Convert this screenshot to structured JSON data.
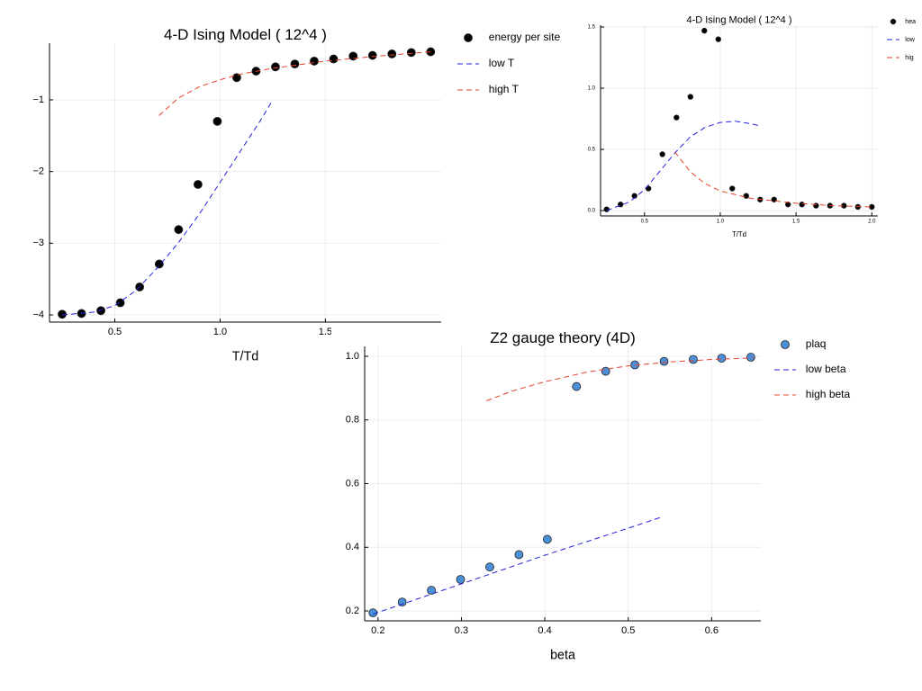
{
  "chart_data": [
    {
      "type": "scatter",
      "title": "4-D Ising Model ( 12^4 )",
      "xlabel": "T/Td",
      "grid": true,
      "legend": "outside right",
      "xlim": [
        0.19,
        2.05
      ],
      "ylim": [
        -4.1,
        -0.21
      ],
      "xticks": [
        0.5,
        {
          "value": 1,
          "label": "1.0"
        },
        1.5
      ],
      "yticks": [
        {
          "value": -1,
          "label": "−1"
        },
        {
          "value": -2,
          "label": "−2"
        },
        {
          "value": -3,
          "label": "−3"
        },
        {
          "value": -4,
          "label": "−4"
        }
      ],
      "series": [
        {
          "name": "energy per site",
          "color": "#000000",
          "marker": "circle",
          "x": [
            0.25,
            0.342,
            0.434,
            0.526,
            0.618,
            0.711,
            0.803,
            0.895,
            0.987,
            1.079,
            1.171,
            1.263,
            1.355,
            1.447,
            1.539,
            1.632,
            1.724,
            1.816,
            1.908,
            2.0
          ],
          "values": [
            -3.99,
            -3.98,
            -3.94,
            -3.83,
            -3.61,
            -3.29,
            -2.81,
            -2.18,
            -1.3,
            -0.69,
            -0.6,
            -0.54,
            -0.5,
            -0.46,
            -0.43,
            -0.39,
            -0.38,
            -0.36,
            -0.34,
            -0.33
          ]
        },
        {
          "name": "low T",
          "color": "#2222dd",
          "line": "dashed",
          "x": [
            0.25,
            0.4,
            0.5,
            0.6,
            0.7,
            0.8,
            0.9,
            1.0,
            1.1,
            1.2,
            1.25
          ],
          "values": [
            -4.0,
            -3.96,
            -3.87,
            -3.66,
            -3.35,
            -3.0,
            -2.6,
            -2.15,
            -1.7,
            -1.25,
            -1.0
          ]
        },
        {
          "name": "high T",
          "color": "#e8402a",
          "line": "dashed",
          "x": [
            0.71,
            0.8,
            0.9,
            1.0,
            1.1,
            1.25,
            1.5,
            1.75,
            2.0
          ],
          "values": [
            -1.22,
            -0.98,
            -0.82,
            -0.72,
            -0.64,
            -0.56,
            -0.46,
            -0.39,
            -0.33
          ]
        }
      ]
    },
    {
      "type": "scatter",
      "title": "4-D Ising Model ( 12^4 )",
      "xlabel": "T/Td",
      "grid": true,
      "legend": "outside right",
      "xlim": [
        0.21,
        2.04
      ],
      "ylim": [
        -0.044,
        1.515
      ],
      "xticks": [
        0.5,
        {
          "value": 1,
          "label": "1.0"
        },
        1.5,
        {
          "value": 2,
          "label": "2.0"
        }
      ],
      "yticks": [
        {
          "value": 0,
          "label": "0.0"
        },
        0.5,
        {
          "value": 1,
          "label": "1.0"
        },
        1.5
      ],
      "series": [
        {
          "name": "hea",
          "color": "#000000",
          "marker": "circle",
          "x": [
            0.25,
            0.342,
            0.434,
            0.526,
            0.618,
            0.711,
            0.803,
            0.895,
            0.987,
            1.079,
            1.171,
            1.263,
            1.355,
            1.447,
            1.539,
            1.632,
            1.724,
            1.816,
            1.908,
            2.0
          ],
          "values": [
            0.01,
            0.05,
            0.12,
            0.18,
            0.46,
            0.76,
            0.93,
            1.47,
            1.4,
            0.18,
            0.12,
            0.09,
            0.09,
            0.05,
            0.05,
            0.04,
            0.04,
            0.04,
            0.03,
            0.03
          ]
        },
        {
          "name": "low",
          "color": "#2222dd",
          "line": "dashed",
          "x": [
            0.25,
            0.4,
            0.5,
            0.6,
            0.7,
            0.8,
            0.9,
            1.0,
            1.1,
            1.2,
            1.27
          ],
          "values": [
            0.0,
            0.07,
            0.17,
            0.32,
            0.47,
            0.6,
            0.68,
            0.72,
            0.73,
            0.71,
            0.69
          ]
        },
        {
          "name": "hig",
          "color": "#e8402a",
          "line": "dashed",
          "x": [
            0.7,
            0.8,
            0.9,
            1.0,
            1.2,
            1.5,
            1.75,
            2.0
          ],
          "values": [
            0.48,
            0.32,
            0.22,
            0.16,
            0.1,
            0.06,
            0.04,
            0.03
          ]
        }
      ]
    },
    {
      "type": "scatter",
      "title": "Z2 gauge theory (4D)",
      "xlabel": "beta",
      "grid": true,
      "legend": "outside right",
      "xlim": [
        0.184,
        0.659
      ],
      "ylim": [
        0.169,
        1.031
      ],
      "xticks": [
        0.2,
        0.3,
        0.4,
        0.5,
        0.6
      ],
      "yticks": [
        0.2,
        0.4,
        0.6,
        0.8,
        {
          "value": 1,
          "label": "1.0"
        }
      ],
      "series": [
        {
          "name": "plaq",
          "color": "#4a8fd8",
          "marker": "circle",
          "x": [
            0.194,
            0.229,
            0.264,
            0.299,
            0.334,
            0.369,
            0.403,
            0.438,
            0.473,
            0.508,
            0.543,
            0.578,
            0.612,
            0.647
          ],
          "values": [
            0.194,
            0.228,
            0.265,
            0.299,
            0.338,
            0.377,
            0.425,
            0.905,
            0.953,
            0.973,
            0.984,
            0.99,
            0.994,
            0.997
          ]
        },
        {
          "name": "low beta",
          "color": "#2222dd",
          "line": "dashed",
          "x": [
            0.194,
            0.3,
            0.4,
            0.5,
            0.54
          ],
          "values": [
            0.19,
            0.285,
            0.375,
            0.46,
            0.495
          ]
        },
        {
          "name": "high beta",
          "color": "#e8402a",
          "line": "dashed",
          "x": [
            0.33,
            0.36,
            0.4,
            0.45,
            0.5,
            0.55,
            0.6,
            0.65
          ],
          "values": [
            0.86,
            0.89,
            0.92,
            0.95,
            0.97,
            0.982,
            0.99,
            0.995
          ]
        }
      ]
    }
  ]
}
